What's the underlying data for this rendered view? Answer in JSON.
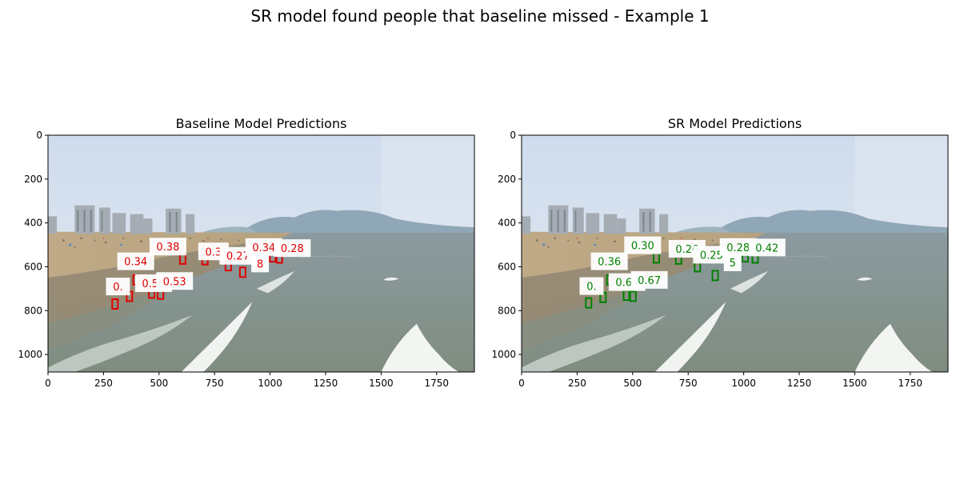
{
  "figure": {
    "title": "SR model found people that baseline missed - Example 1"
  },
  "axes": {
    "x_ticks": [
      "0",
      "250",
      "500",
      "750",
      "1000",
      "1250",
      "1500",
      "1750"
    ],
    "y_ticks": [
      "0",
      "200",
      "400",
      "600",
      "800",
      "1000"
    ],
    "x_values": [
      0,
      250,
      500,
      750,
      1000,
      1250,
      1500,
      1750
    ],
    "y_values": [
      0,
      200,
      400,
      600,
      800,
      1000
    ],
    "xlim": [
      0,
      1920
    ],
    "ylim": [
      1080,
      0
    ]
  },
  "panels": [
    {
      "id": "baseline",
      "title": "Baseline Model Predictions",
      "box_color": "#e00000",
      "text_color": "#e00000",
      "detections": [
        {
          "label": "0.38",
          "x": 540,
          "y": 508,
          "bx": 605,
          "by": 565
        },
        {
          "label": "0.34",
          "x": 395,
          "y": 575,
          "bx": 395,
          "by": 660
        },
        {
          "label": "0.3",
          "x": 745,
          "y": 530,
          "bx": 705,
          "by": 568
        },
        {
          "label": "0.27",
          "x": 855,
          "y": 550,
          "bx": 810,
          "by": 595
        },
        {
          "label": "0.34",
          "x": 972,
          "y": 510,
          "bx": 1010,
          "by": 555
        },
        {
          "label": "0.28",
          "x": 1100,
          "y": 515,
          "bx": 1040,
          "by": 560
        },
        {
          "label": "8",
          "x": 955,
          "y": 585,
          "bx": 875,
          "by": 625
        },
        {
          "label": "0.",
          "x": 315,
          "y": 690,
          "bx": 300,
          "by": 770
        },
        {
          "label": "0.56",
          "x": 475,
          "y": 675,
          "bx": 365,
          "by": 735
        },
        {
          "label": "0.53",
          "x": 570,
          "y": 665,
          "bx": 465,
          "by": 720
        },
        {
          "label": "",
          "x": 0,
          "y": 0,
          "bx": 505,
          "by": 725
        }
      ]
    },
    {
      "id": "sr",
      "title": "SR Model Predictions",
      "box_color": "#008000",
      "text_color": "#008000",
      "detections": [
        {
          "label": "0.30",
          "x": 545,
          "y": 502,
          "bx": 605,
          "by": 560
        },
        {
          "label": "0.36",
          "x": 395,
          "y": 575,
          "bx": 395,
          "by": 660
        },
        {
          "label": "0.26",
          "x": 745,
          "y": 518,
          "bx": 705,
          "by": 565
        },
        {
          "label": "0.25",
          "x": 855,
          "y": 545,
          "bx": 790,
          "by": 600
        },
        {
          "label": "0.28",
          "x": 975,
          "y": 510,
          "bx": 1005,
          "by": 555
        },
        {
          "label": "0.42",
          "x": 1105,
          "y": 512,
          "bx": 1050,
          "by": 560
        },
        {
          "label": "5",
          "x": 950,
          "y": 580,
          "bx": 870,
          "by": 640
        },
        {
          "label": "0.",
          "x": 315,
          "y": 688,
          "bx": 300,
          "by": 765
        },
        {
          "label": "0.64",
          "x": 475,
          "y": 670,
          "bx": 365,
          "by": 740
        },
        {
          "label": "0.67",
          "x": 575,
          "y": 660,
          "bx": 470,
          "by": 730
        },
        {
          "label": "",
          "x": 0,
          "y": 0,
          "bx": 500,
          "by": 735
        }
      ]
    }
  ]
}
